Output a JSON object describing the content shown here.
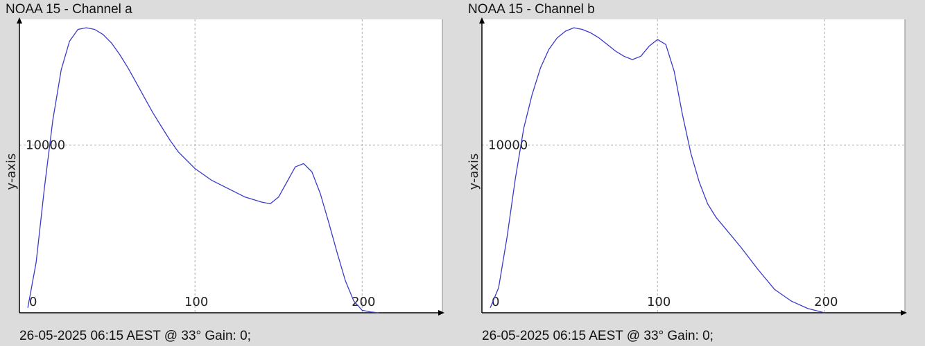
{
  "chart_data": [
    {
      "type": "line",
      "title": "NOAA 15 - Channel a",
      "footer": "26-05-2025 06:15 AEST @ 33° Gain: 0;",
      "xlabel": "",
      "ylabel": "y-axis",
      "xlim": [
        -5,
        248
      ],
      "ylim": [
        0,
        17500
      ],
      "x_ticks": [
        0,
        100,
        200
      ],
      "y_ticks": [
        10000
      ],
      "grid": true,
      "line_color": "#3a3ac8",
      "series": [
        {
          "x": [
            0,
            5,
            10,
            15,
            20,
            25,
            30,
            35,
            40,
            45,
            50,
            55,
            60,
            65,
            70,
            75,
            80,
            85,
            90,
            95,
            100,
            110,
            120,
            130,
            140,
            145,
            150,
            155,
            160,
            165,
            170,
            175,
            180,
            185,
            190,
            195,
            200,
            205,
            210
          ],
          "y": [
            300,
            3000,
            7500,
            11500,
            14500,
            16200,
            16900,
            17000,
            16900,
            16600,
            16100,
            15400,
            14600,
            13700,
            12800,
            11900,
            11100,
            10300,
            9600,
            9100,
            8600,
            7900,
            7400,
            6900,
            6600,
            6500,
            6900,
            7800,
            8700,
            8900,
            8400,
            7100,
            5400,
            3600,
            1900,
            700,
            150,
            50,
            0
          ]
        }
      ]
    },
    {
      "type": "line",
      "title": "NOAA 15 - Channel b",
      "footer": "26-05-2025 06:15 AEST @ 33° Gain: 0;",
      "xlabel": "",
      "ylabel": "y-axis",
      "xlim": [
        -5,
        248
      ],
      "ylim": [
        0,
        17500
      ],
      "x_ticks": [
        0,
        100,
        200
      ],
      "y_ticks": [
        10000
      ],
      "grid": true,
      "line_color": "#3a3ac8",
      "series": [
        {
          "x": [
            0,
            5,
            10,
            15,
            20,
            25,
            30,
            35,
            40,
            45,
            50,
            55,
            60,
            65,
            70,
            75,
            80,
            85,
            90,
            95,
            100,
            105,
            110,
            115,
            120,
            125,
            130,
            135,
            140,
            150,
            160,
            170,
            180,
            190,
            200
          ],
          "y": [
            300,
            1500,
            4500,
            8000,
            11000,
            13000,
            14600,
            15700,
            16400,
            16800,
            17000,
            16900,
            16700,
            16400,
            16000,
            15600,
            15300,
            15100,
            15300,
            15900,
            16300,
            16000,
            14400,
            11800,
            9500,
            7800,
            6500,
            5700,
            5100,
            3900,
            2600,
            1400,
            700,
            250,
            0
          ]
        }
      ]
    }
  ]
}
